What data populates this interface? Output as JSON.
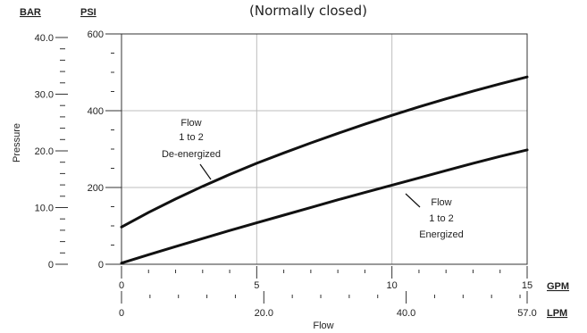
{
  "chart_data": {
    "type": "line",
    "title": "(Normally closed)",
    "xlabel": "Flow",
    "ylabel": "Pressure",
    "x_units": {
      "primary": "GPM",
      "secondary": "LPM"
    },
    "y_units": {
      "primary": "PSI",
      "secondary": "BAR"
    },
    "xlim": [
      0,
      15
    ],
    "ylim": [
      0,
      600
    ],
    "x_ticks_gpm": [
      "0",
      "5",
      "10",
      "15"
    ],
    "x_ticks_lpm": [
      "0",
      "20.0",
      "40.0",
      "57.0"
    ],
    "y_ticks_psi": [
      "0",
      "200",
      "400",
      "600"
    ],
    "y_ticks_bar": [
      "0",
      "10.0",
      "20.0",
      "30.0",
      "40.0"
    ],
    "grid": true,
    "series": [
      {
        "name": "Flow 1 to 2 De-energized",
        "label_lines": [
          "Flow",
          "1 to 2",
          "De-energized"
        ],
        "x": [
          0,
          1,
          2,
          3,
          4,
          5,
          6,
          7,
          8,
          9,
          10,
          11,
          12,
          13,
          14,
          15
        ],
        "values": [
          97,
          135,
          170,
          203,
          234,
          263,
          290,
          316,
          341,
          365,
          388,
          410,
          431,
          451,
          470,
          488
        ]
      },
      {
        "name": "Flow 1 to 2 Energized",
        "label_lines": [
          "Flow",
          "1 to 2",
          "Energized"
        ],
        "x": [
          0,
          1,
          2,
          3,
          4,
          5,
          6,
          7,
          8,
          9,
          10,
          11,
          12,
          13,
          14,
          15
        ],
        "values": [
          3,
          25,
          46,
          67,
          88,
          108,
          128,
          148,
          168,
          187,
          206,
          225,
          244,
          263,
          281,
          298
        ]
      }
    ]
  }
}
